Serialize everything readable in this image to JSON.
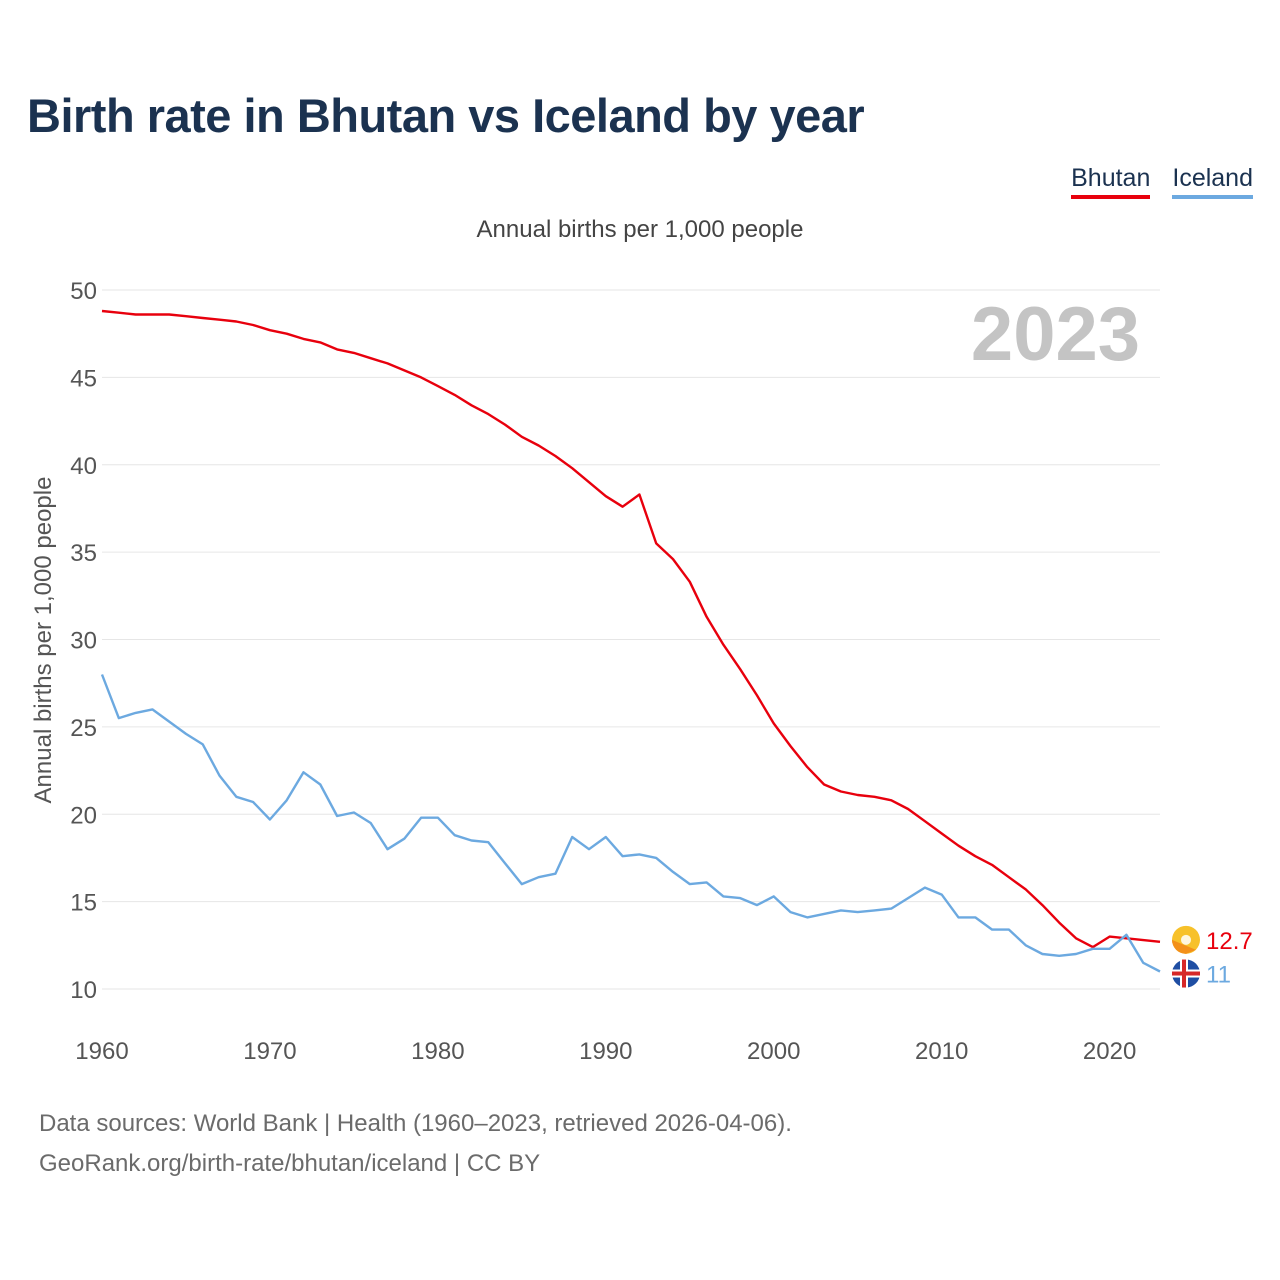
{
  "title": "Birth rate in Bhutan vs Iceland by year",
  "legend": {
    "bhutan": "Bhutan",
    "iceland": "Iceland"
  },
  "year_watermark": "2023",
  "footer": {
    "line1": "Data sources: World Bank | Health (1960–2023, retrieved 2026-04-06).",
    "line2": "GeoRank.org/birth-rate/bhutan/iceland | CC BY"
  },
  "colors": {
    "bhutan": "#e8000d",
    "iceland": "#6ca9e0",
    "title": "#1b3250",
    "grid": "#e6e6e6"
  },
  "chart_data": {
    "type": "line",
    "title": "Birth rate in Bhutan vs Iceland by year",
    "subtitle": "Annual births per 1,000 people",
    "ylabel": "Annual births per 1,000 people",
    "xlabel": "",
    "xlim": [
      1960,
      2023
    ],
    "ylim": [
      10,
      50
    ],
    "yticks": [
      10,
      15,
      20,
      25,
      30,
      35,
      40,
      45,
      50
    ],
    "xticks": [
      1960,
      1970,
      1980,
      1990,
      2000,
      2010,
      2020
    ],
    "grid": true,
    "x": [
      1960,
      1961,
      1962,
      1963,
      1964,
      1965,
      1966,
      1967,
      1968,
      1969,
      1970,
      1971,
      1972,
      1973,
      1974,
      1975,
      1976,
      1977,
      1978,
      1979,
      1980,
      1981,
      1982,
      1983,
      1984,
      1985,
      1986,
      1987,
      1988,
      1989,
      1990,
      1991,
      1992,
      1993,
      1994,
      1995,
      1996,
      1997,
      1998,
      1999,
      2000,
      2001,
      2002,
      2003,
      2004,
      2005,
      2006,
      2007,
      2008,
      2009,
      2010,
      2011,
      2012,
      2013,
      2014,
      2015,
      2016,
      2017,
      2018,
      2019,
      2020,
      2021,
      2022,
      2023
    ],
    "series": [
      {
        "name": "Bhutan",
        "end_label": "12.7",
        "values": [
          48.8,
          48.7,
          48.6,
          48.6,
          48.6,
          48.5,
          48.4,
          48.3,
          48.2,
          48.0,
          47.7,
          47.5,
          47.2,
          47.0,
          46.6,
          46.4,
          46.1,
          45.8,
          45.4,
          45.0,
          44.5,
          44.0,
          43.4,
          42.9,
          42.3,
          41.6,
          41.1,
          40.5,
          39.8,
          39.0,
          38.2,
          37.6,
          38.3,
          35.5,
          34.6,
          33.3,
          31.3,
          29.7,
          28.3,
          26.8,
          25.2,
          23.9,
          22.7,
          21.7,
          21.3,
          21.1,
          21.0,
          20.8,
          20.3,
          19.6,
          18.9,
          18.2,
          17.6,
          17.1,
          16.4,
          15.7,
          14.8,
          13.8,
          12.9,
          12.4,
          13.0,
          12.9,
          12.8,
          12.7
        ]
      },
      {
        "name": "Iceland",
        "end_label": "11",
        "values": [
          28.0,
          25.5,
          25.8,
          26.0,
          25.3,
          24.6,
          24.0,
          22.2,
          21.0,
          20.7,
          19.7,
          20.8,
          22.4,
          21.7,
          19.9,
          20.1,
          19.5,
          18.0,
          18.6,
          19.8,
          19.8,
          18.8,
          18.5,
          18.4,
          17.2,
          16.0,
          16.4,
          16.6,
          18.7,
          18.0,
          18.7,
          17.6,
          17.7,
          17.5,
          16.7,
          16.0,
          16.1,
          15.3,
          15.2,
          14.8,
          15.3,
          14.4,
          14.1,
          14.3,
          14.5,
          14.4,
          14.5,
          14.6,
          15.2,
          15.8,
          15.4,
          14.1,
          14.1,
          13.4,
          13.4,
          12.5,
          12.0,
          11.9,
          12.0,
          12.3,
          12.3,
          13.1,
          11.5,
          11.0
        ]
      }
    ]
  }
}
